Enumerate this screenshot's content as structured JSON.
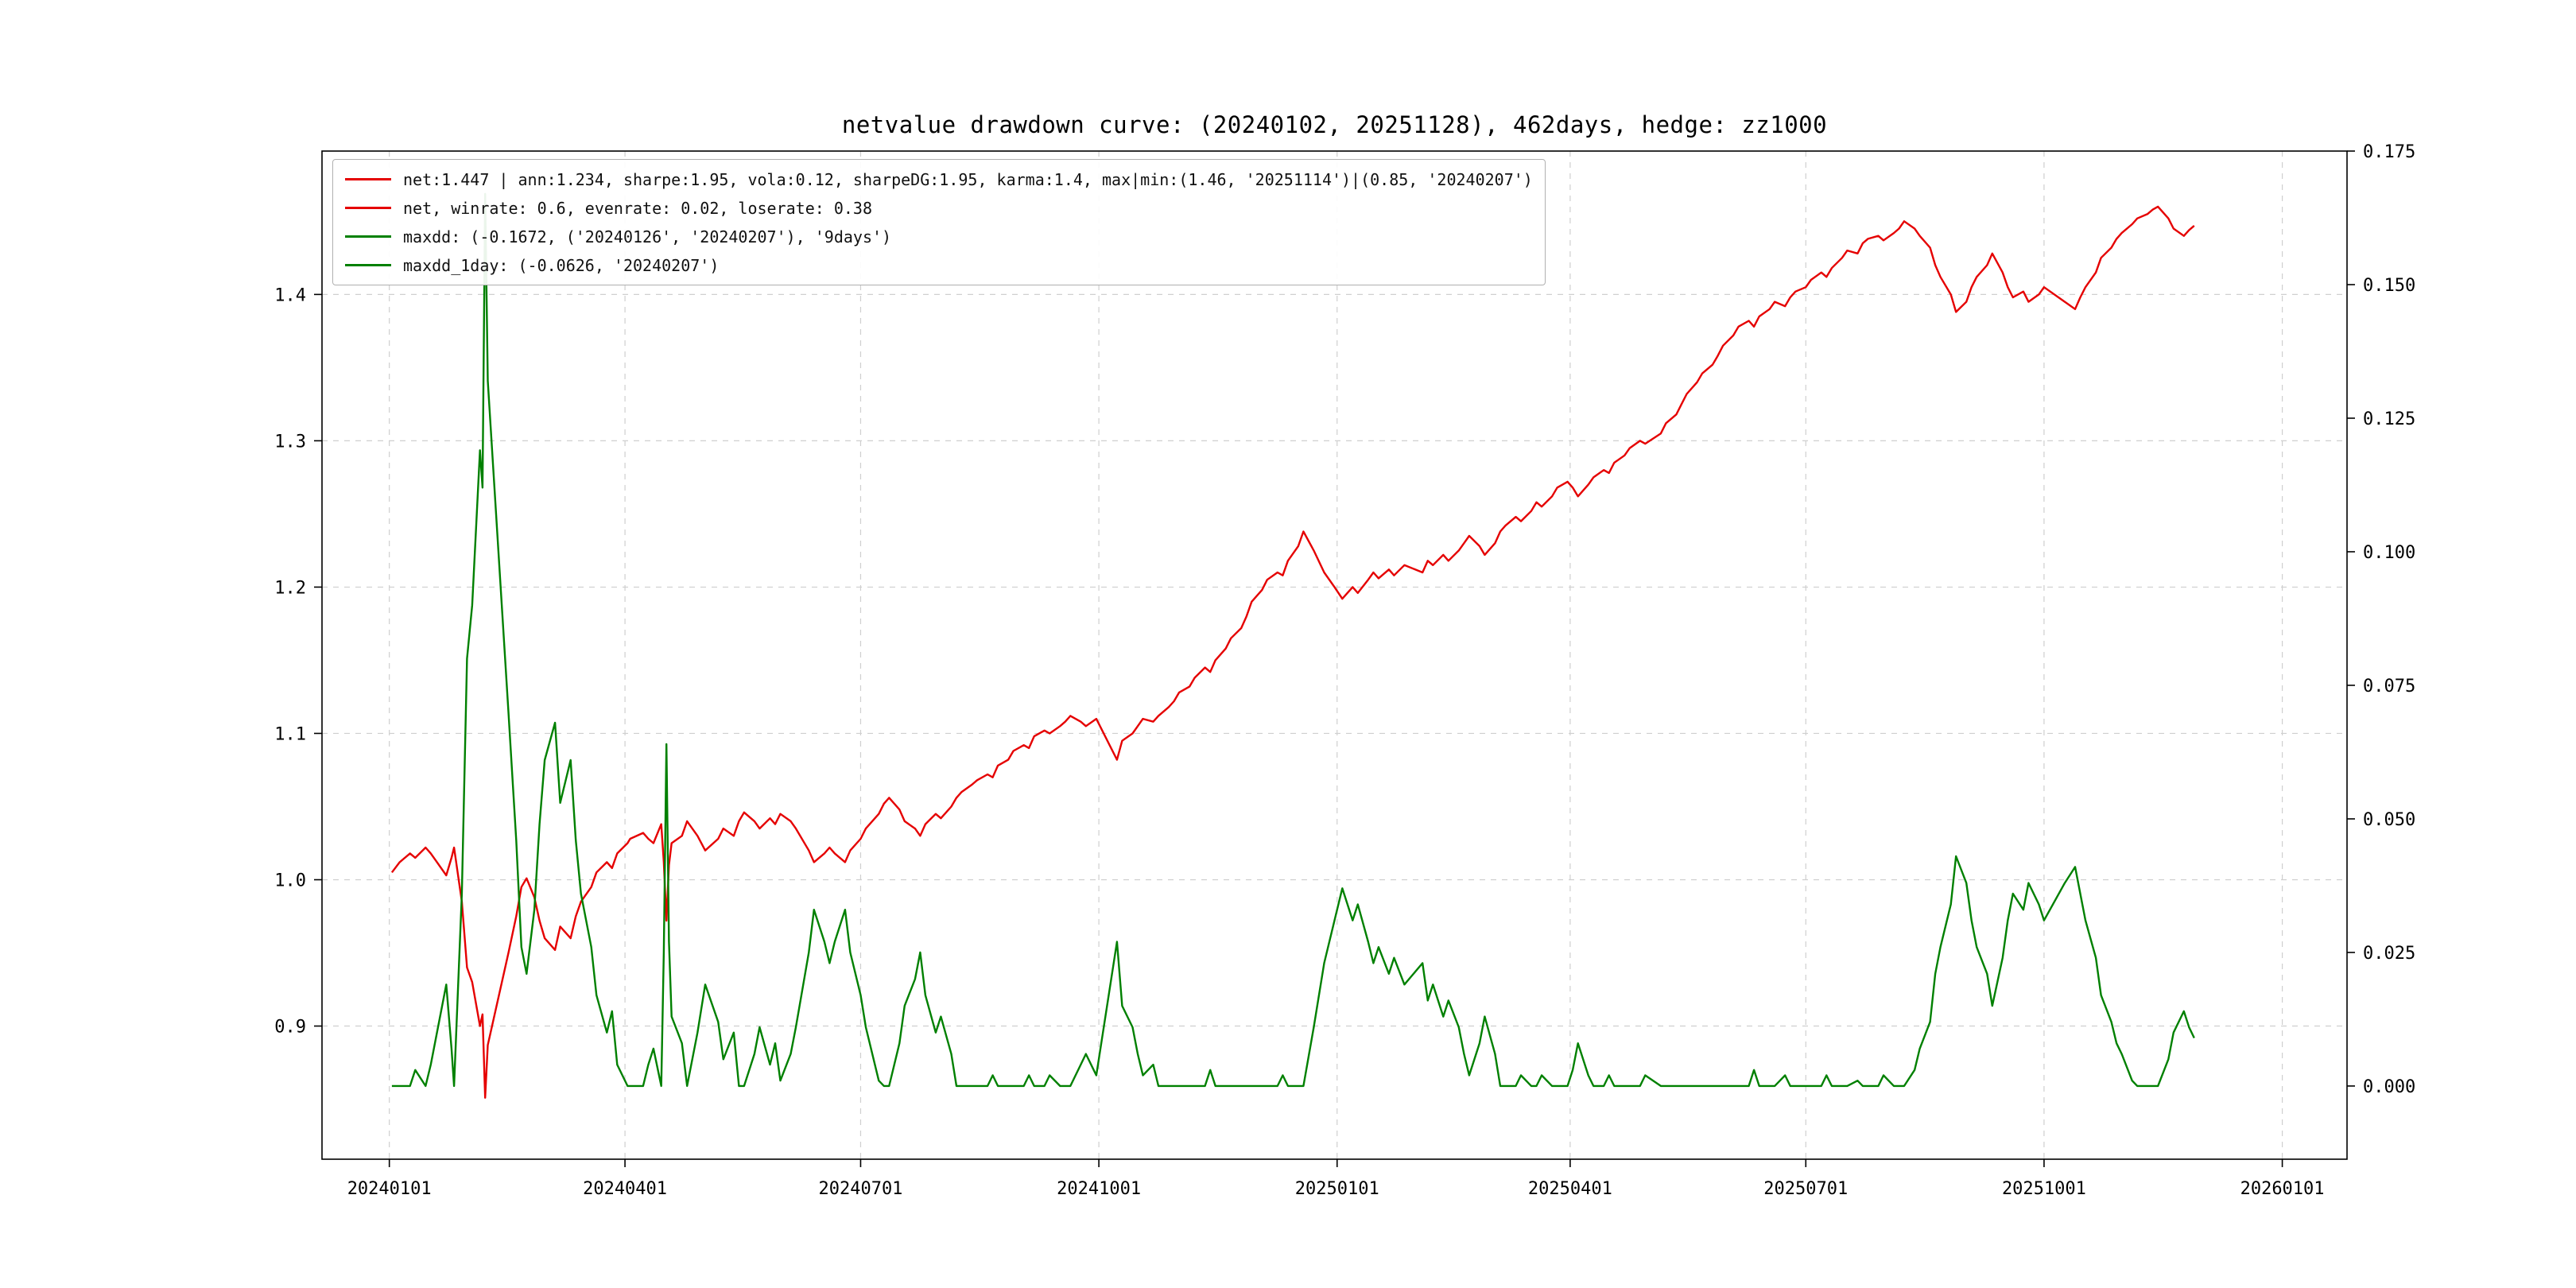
{
  "title": "netvalue drawdown curve: (20240102, 20251128), 462days, hedge: zz1000",
  "colors": {
    "net_line": "#e50000",
    "drawdown_line": "#008000",
    "grid": "#cfcfcf",
    "spine": "#000000",
    "legend_border": "#b0b0b0",
    "background": "#ffffff"
  },
  "legend": {
    "items": [
      {
        "label": "net:1.447 | ann:1.234, sharpe:1.95, vola:0.12, sharpeDG:1.95, karma:1.4, max|min:(1.46, '20251114')|(0.85, '20240207')",
        "color": "#e50000"
      },
      {
        "label": "net, winrate: 0.6, evenrate: 0.02, loserate: 0.38",
        "color": "#e50000"
      },
      {
        "label": "maxdd: (-0.1672, ('20240126', '20240207'), '9days')",
        "color": "#008000"
      },
      {
        "label": "maxdd_1day: (-0.0626, '20240207')",
        "color": "#008000"
      }
    ]
  },
  "chart_data": {
    "type": "line",
    "title": "netvalue drawdown curve: (20240102, 20251128), 462days, hedge: zz1000",
    "xlabel": "",
    "ylabel_left": "",
    "ylabel_right": "",
    "grid": true,
    "legend_position": "upper left",
    "xlim": [
      "20231206",
      "20260126"
    ],
    "ylim_left": [
      0.809,
      1.498
    ],
    "ylim_right": [
      -0.0137,
      0.175
    ],
    "x_ticks": [
      "20240101",
      "20240401",
      "20240701",
      "20241001",
      "20250101",
      "20250401",
      "20250701",
      "20251001",
      "20260101"
    ],
    "left_ticks": [
      "0.9",
      "1.0",
      "1.1",
      "1.2",
      "1.3",
      "1.4"
    ],
    "right_ticks": [
      "0.000",
      "0.025",
      "0.050",
      "0.075",
      "0.100",
      "0.125",
      "0.150",
      "0.175"
    ],
    "series": [
      {
        "name": "net",
        "axis": "left",
        "color": "#e50000",
        "column": 1
      },
      {
        "name": "drawdown",
        "axis": "right",
        "color": "#008000",
        "column": 2
      }
    ],
    "points": [
      [
        "20240102",
        1.005,
        0.0
      ],
      [
        "20240105",
        1.012,
        0.0
      ],
      [
        "20240109",
        1.018,
        0.0
      ],
      [
        "20240111",
        1.015,
        0.003
      ],
      [
        "20240115",
        1.022,
        0.0
      ],
      [
        "20240117",
        1.018,
        0.004
      ],
      [
        "20240119",
        1.013,
        0.009
      ],
      [
        "20240123",
        1.003,
        0.019
      ],
      [
        "20240125",
        1.015,
        0.007
      ],
      [
        "20240126",
        1.022,
        0.0
      ],
      [
        "20240129",
        0.985,
        0.036
      ],
      [
        "20240131",
        0.94,
        0.08
      ],
      [
        "20240202",
        0.93,
        0.09
      ],
      [
        "20240205",
        0.9,
        0.119
      ],
      [
        "20240206",
        0.908,
        0.112
      ],
      [
        "20240207",
        0.851,
        0.167
      ],
      [
        "20240208",
        0.887,
        0.132
      ],
      [
        "20240216",
        0.95,
        0.07
      ],
      [
        "20240219",
        0.975,
        0.046
      ],
      [
        "20240221",
        0.995,
        0.026
      ],
      [
        "20240223",
        1.001,
        0.021
      ],
      [
        "20240226",
        0.988,
        0.033
      ],
      [
        "20240228",
        0.972,
        0.049
      ],
      [
        "20240301",
        0.96,
        0.061
      ],
      [
        "20240305",
        0.952,
        0.068
      ],
      [
        "20240307",
        0.968,
        0.053
      ],
      [
        "20240311",
        0.96,
        0.061
      ],
      [
        "20240313",
        0.975,
        0.046
      ],
      [
        "20240315",
        0.985,
        0.036
      ],
      [
        "20240319",
        0.995,
        0.026
      ],
      [
        "20240321",
        1.005,
        0.017
      ],
      [
        "20240325",
        1.012,
        0.01
      ],
      [
        "20240327",
        1.008,
        0.014
      ],
      [
        "20240329",
        1.018,
        0.004
      ],
      [
        "20240402",
        1.025,
        0.0
      ],
      [
        "20240403",
        1.028,
        0.0
      ],
      [
        "20240408",
        1.032,
        0.0
      ],
      [
        "20240410",
        1.028,
        0.004
      ],
      [
        "20240412",
        1.025,
        0.007
      ],
      [
        "20240415",
        1.038,
        0.0
      ],
      [
        "20240416",
        1.012,
        0.025
      ],
      [
        "20240417",
        0.972,
        0.064
      ],
      [
        "20240418",
        1.01,
        0.027
      ],
      [
        "20240419",
        1.025,
        0.013
      ],
      [
        "20240423",
        1.03,
        0.008
      ],
      [
        "20240425",
        1.04,
        0.0
      ],
      [
        "20240429",
        1.03,
        0.01
      ],
      [
        "20240502",
        1.02,
        0.019
      ],
      [
        "20240507",
        1.028,
        0.012
      ],
      [
        "20240509",
        1.035,
        0.005
      ],
      [
        "20240513",
        1.03,
        0.01
      ],
      [
        "20240515",
        1.04,
        0.0
      ],
      [
        "20240517",
        1.046,
        0.0
      ],
      [
        "20240521",
        1.04,
        0.006
      ],
      [
        "20240523",
        1.035,
        0.011
      ],
      [
        "20240527",
        1.042,
        0.004
      ],
      [
        "20240529",
        1.038,
        0.008
      ],
      [
        "20240531",
        1.045,
        0.001
      ],
      [
        "20240604",
        1.04,
        0.006
      ],
      [
        "20240606",
        1.035,
        0.011
      ],
      [
        "20240611",
        1.02,
        0.025
      ],
      [
        "20240613",
        1.012,
        0.033
      ],
      [
        "20240617",
        1.018,
        0.027
      ],
      [
        "20240619",
        1.022,
        0.023
      ],
      [
        "20240621",
        1.018,
        0.027
      ],
      [
        "20240625",
        1.012,
        0.033
      ],
      [
        "20240627",
        1.02,
        0.025
      ],
      [
        "20240701",
        1.028,
        0.017
      ],
      [
        "20240703",
        1.035,
        0.011
      ],
      [
        "20240708",
        1.045,
        0.001
      ],
      [
        "20240710",
        1.052,
        0.0
      ],
      [
        "20240712",
        1.056,
        0.0
      ],
      [
        "20240716",
        1.048,
        0.008
      ],
      [
        "20240718",
        1.04,
        0.015
      ],
      [
        "20240722",
        1.035,
        0.02
      ],
      [
        "20240724",
        1.03,
        0.025
      ],
      [
        "20240726",
        1.038,
        0.017
      ],
      [
        "20240730",
        1.045,
        0.01
      ],
      [
        "20240801",
        1.042,
        0.013
      ],
      [
        "20240805",
        1.05,
        0.006
      ],
      [
        "20240807",
        1.056,
        0.0
      ],
      [
        "20240809",
        1.06,
        0.0
      ],
      [
        "20240813",
        1.065,
        0.0
      ],
      [
        "20240815",
        1.068,
        0.0
      ],
      [
        "20240819",
        1.072,
        0.0
      ],
      [
        "20240821",
        1.07,
        0.002
      ],
      [
        "20240823",
        1.078,
        0.0
      ],
      [
        "20240827",
        1.082,
        0.0
      ],
      [
        "20240829",
        1.088,
        0.0
      ],
      [
        "20240902",
        1.092,
        0.0
      ],
      [
        "20240904",
        1.09,
        0.002
      ],
      [
        "20240906",
        1.098,
        0.0
      ],
      [
        "20240910",
        1.102,
        0.0
      ],
      [
        "20240912",
        1.1,
        0.002
      ],
      [
        "20240916",
        1.105,
        0.0
      ],
      [
        "20240918",
        1.108,
        0.0
      ],
      [
        "20240920",
        1.112,
        0.0
      ],
      [
        "20240924",
        1.108,
        0.004
      ],
      [
        "20240926",
        1.105,
        0.006
      ],
      [
        "20240930",
        1.11,
        0.002
      ],
      [
        "20241008",
        1.082,
        0.027
      ],
      [
        "20241010",
        1.095,
        0.015
      ],
      [
        "20241014",
        1.1,
        0.011
      ],
      [
        "20241016",
        1.105,
        0.006
      ],
      [
        "20241018",
        1.11,
        0.002
      ],
      [
        "20241022",
        1.108,
        0.004
      ],
      [
        "20241024",
        1.112,
        0.0
      ],
      [
        "20241028",
        1.118,
        0.0
      ],
      [
        "20241030",
        1.122,
        0.0
      ],
      [
        "20241101",
        1.128,
        0.0
      ],
      [
        "20241105",
        1.132,
        0.0
      ],
      [
        "20241107",
        1.138,
        0.0
      ],
      [
        "20241111",
        1.145,
        0.0
      ],
      [
        "20241113",
        1.142,
        0.003
      ],
      [
        "20241115",
        1.15,
        0.0
      ],
      [
        "20241119",
        1.158,
        0.0
      ],
      [
        "20241121",
        1.165,
        0.0
      ],
      [
        "20241125",
        1.172,
        0.0
      ],
      [
        "20241127",
        1.18,
        0.0
      ],
      [
        "20241129",
        1.19,
        0.0
      ],
      [
        "20241203",
        1.198,
        0.0
      ],
      [
        "20241205",
        1.205,
        0.0
      ],
      [
        "20241209",
        1.21,
        0.0
      ],
      [
        "20241211",
        1.208,
        0.002
      ],
      [
        "20241213",
        1.218,
        0.0
      ],
      [
        "20241217",
        1.228,
        0.0
      ],
      [
        "20241219",
        1.238,
        0.0
      ],
      [
        "20241223",
        1.225,
        0.011
      ],
      [
        "20241227",
        1.21,
        0.023
      ],
      [
        "20241231",
        1.2,
        0.031
      ],
      [
        "20250103",
        1.192,
        0.037
      ],
      [
        "20250107",
        1.2,
        0.031
      ],
      [
        "20250109",
        1.196,
        0.034
      ],
      [
        "20250113",
        1.205,
        0.027
      ],
      [
        "20250115",
        1.21,
        0.023
      ],
      [
        "20250117",
        1.206,
        0.026
      ],
      [
        "20250121",
        1.212,
        0.021
      ],
      [
        "20250123",
        1.208,
        0.024
      ],
      [
        "20250127",
        1.215,
        0.019
      ],
      [
        "20250203",
        1.21,
        0.023
      ],
      [
        "20250205",
        1.218,
        0.016
      ],
      [
        "20250207",
        1.215,
        0.019
      ],
      [
        "20250211",
        1.222,
        0.013
      ],
      [
        "20250213",
        1.218,
        0.016
      ],
      [
        "20250217",
        1.225,
        0.011
      ],
      [
        "20250219",
        1.23,
        0.006
      ],
      [
        "20250221",
        1.235,
        0.002
      ],
      [
        "20250225",
        1.228,
        0.008
      ],
      [
        "20250227",
        1.222,
        0.013
      ],
      [
        "20250303",
        1.23,
        0.006
      ],
      [
        "20250305",
        1.238,
        0.0
      ],
      [
        "20250307",
        1.242,
        0.0
      ],
      [
        "20250311",
        1.248,
        0.0
      ],
      [
        "20250313",
        1.245,
        0.002
      ],
      [
        "20250317",
        1.252,
        0.0
      ],
      [
        "20250319",
        1.258,
        0.0
      ],
      [
        "20250321",
        1.255,
        0.002
      ],
      [
        "20250325",
        1.262,
        0.0
      ],
      [
        "20250327",
        1.268,
        0.0
      ],
      [
        "20250331",
        1.272,
        0.0
      ],
      [
        "20250402",
        1.268,
        0.003
      ],
      [
        "20250404",
        1.262,
        0.008
      ],
      [
        "20250408",
        1.27,
        0.002
      ],
      [
        "20250410",
        1.275,
        0.0
      ],
      [
        "20250414",
        1.28,
        0.0
      ],
      [
        "20250416",
        1.278,
        0.002
      ],
      [
        "20250418",
        1.285,
        0.0
      ],
      [
        "20250422",
        1.29,
        0.0
      ],
      [
        "20250424",
        1.295,
        0.0
      ],
      [
        "20250428",
        1.3,
        0.0
      ],
      [
        "20250430",
        1.298,
        0.002
      ],
      [
        "20250506",
        1.305,
        0.0
      ],
      [
        "20250508",
        1.312,
        0.0
      ],
      [
        "20250512",
        1.318,
        0.0
      ],
      [
        "20250514",
        1.325,
        0.0
      ],
      [
        "20250516",
        1.332,
        0.0
      ],
      [
        "20250520",
        1.34,
        0.0
      ],
      [
        "20250522",
        1.346,
        0.0
      ],
      [
        "20250526",
        1.352,
        0.0
      ],
      [
        "20250528",
        1.358,
        0.0
      ],
      [
        "20250530",
        1.365,
        0.0
      ],
      [
        "20250603",
        1.372,
        0.0
      ],
      [
        "20250605",
        1.378,
        0.0
      ],
      [
        "20250609",
        1.382,
        0.0
      ],
      [
        "20250611",
        1.378,
        0.003
      ],
      [
        "20250613",
        1.385,
        0.0
      ],
      [
        "20250617",
        1.39,
        0.0
      ],
      [
        "20250619",
        1.395,
        0.0
      ],
      [
        "20250623",
        1.392,
        0.002
      ],
      [
        "20250625",
        1.398,
        0.0
      ],
      [
        "20250627",
        1.402,
        0.0
      ],
      [
        "20250701",
        1.405,
        0.0
      ],
      [
        "20250703",
        1.41,
        0.0
      ],
      [
        "20250707",
        1.415,
        0.0
      ],
      [
        "20250709",
        1.412,
        0.002
      ],
      [
        "20250711",
        1.418,
        0.0
      ],
      [
        "20250715",
        1.425,
        0.0
      ],
      [
        "20250717",
        1.43,
        0.0
      ],
      [
        "20250721",
        1.428,
        0.001
      ],
      [
        "20250723",
        1.435,
        0.0
      ],
      [
        "20250725",
        1.438,
        0.0
      ],
      [
        "20250729",
        1.44,
        0.0
      ],
      [
        "20250731",
        1.437,
        0.002
      ],
      [
        "20250804",
        1.442,
        0.0
      ],
      [
        "20250806",
        1.445,
        0.0
      ],
      [
        "20250808",
        1.45,
        0.0
      ],
      [
        "20250812",
        1.445,
        0.003
      ],
      [
        "20250814",
        1.44,
        0.007
      ],
      [
        "20250818",
        1.432,
        0.012
      ],
      [
        "20250820",
        1.42,
        0.021
      ],
      [
        "20250822",
        1.412,
        0.026
      ],
      [
        "20250826",
        1.4,
        0.034
      ],
      [
        "20250828",
        1.388,
        0.043
      ],
      [
        "20250901",
        1.395,
        0.038
      ],
      [
        "20250903",
        1.405,
        0.031
      ],
      [
        "20250905",
        1.412,
        0.026
      ],
      [
        "20250909",
        1.42,
        0.021
      ],
      [
        "20250911",
        1.428,
        0.015
      ],
      [
        "20250915",
        1.415,
        0.024
      ],
      [
        "20250917",
        1.405,
        0.031
      ],
      [
        "20250919",
        1.398,
        0.036
      ],
      [
        "20250923",
        1.402,
        0.033
      ],
      [
        "20250925",
        1.395,
        0.038
      ],
      [
        "20250929",
        1.4,
        0.034
      ],
      [
        "20251001",
        1.405,
        0.031
      ],
      [
        "20251009",
        1.395,
        0.038
      ],
      [
        "20251013",
        1.39,
        0.041
      ],
      [
        "20251015",
        1.398,
        0.036
      ],
      [
        "20251017",
        1.405,
        0.031
      ],
      [
        "20251021",
        1.415,
        0.024
      ],
      [
        "20251023",
        1.425,
        0.017
      ],
      [
        "20251027",
        1.432,
        0.012
      ],
      [
        "20251029",
        1.438,
        0.008
      ],
      [
        "20251031",
        1.442,
        0.006
      ],
      [
        "20251104",
        1.448,
        0.001
      ],
      [
        "20251106",
        1.452,
        0.0
      ],
      [
        "20251110",
        1.455,
        0.0
      ],
      [
        "20251112",
        1.458,
        0.0
      ],
      [
        "20251114",
        1.46,
        0.0
      ],
      [
        "20251118",
        1.452,
        0.005
      ],
      [
        "20251120",
        1.445,
        0.01
      ],
      [
        "20251124",
        1.44,
        0.014
      ],
      [
        "20251126",
        1.444,
        0.011
      ],
      [
        "20251128",
        1.447,
        0.009
      ]
    ]
  }
}
